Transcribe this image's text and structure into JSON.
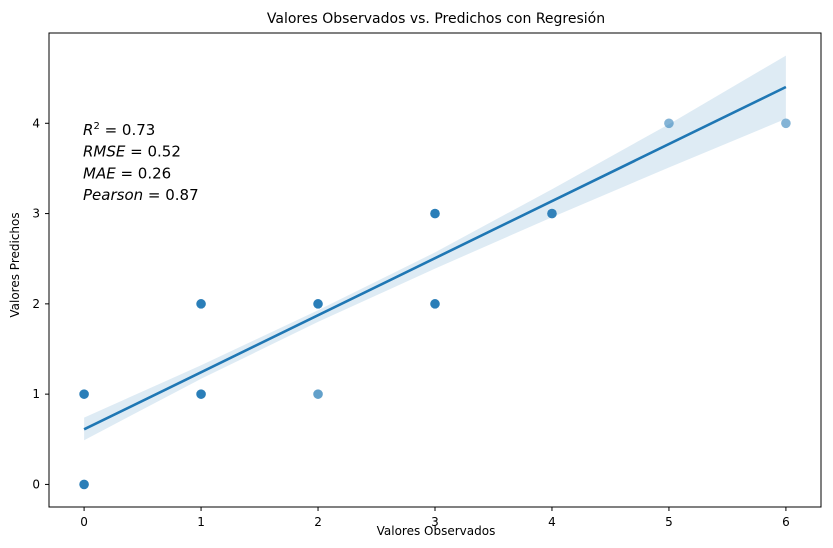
{
  "chart_data": {
    "type": "scatter",
    "title": "Valores Observados vs. Predichos con Regresión",
    "xlabel": "Valores Observados",
    "ylabel": "Valores Predichos",
    "xlim": [
      -0.3,
      6.3
    ],
    "ylim": [
      -0.25,
      5.0
    ],
    "x_ticks": [
      "0",
      "1",
      "2",
      "3",
      "4",
      "5",
      "6"
    ],
    "y_ticks": [
      "0",
      "1",
      "2",
      "3",
      "4"
    ],
    "grid": false,
    "points": [
      {
        "x": 0,
        "y": 0,
        "alpha": 0.95
      },
      {
        "x": 0,
        "y": 1,
        "alpha": 0.95
      },
      {
        "x": 1,
        "y": 1,
        "alpha": 0.95
      },
      {
        "x": 1,
        "y": 2,
        "alpha": 0.95
      },
      {
        "x": 2,
        "y": 1,
        "alpha": 0.7
      },
      {
        "x": 2,
        "y": 2,
        "alpha": 0.95
      },
      {
        "x": 3,
        "y": 2,
        "alpha": 0.95
      },
      {
        "x": 3,
        "y": 3,
        "alpha": 0.95
      },
      {
        "x": 4,
        "y": 3,
        "alpha": 0.9
      },
      {
        "x": 5,
        "y": 4,
        "alpha": 0.55
      },
      {
        "x": 6,
        "y": 4,
        "alpha": 0.55
      }
    ],
    "regression": {
      "intercept": 0.61,
      "slope": 0.632,
      "x_range": [
        0,
        6
      ]
    },
    "confidence_band": {
      "x": [
        0,
        1,
        2,
        3,
        4,
        5,
        6
      ],
      "lower": [
        0.49,
        1.17,
        1.8,
        2.39,
        2.96,
        3.51,
        4.05
      ],
      "upper": [
        0.74,
        1.32,
        1.93,
        2.57,
        3.27,
        3.99,
        4.75
      ]
    },
    "colors": {
      "points": "#1f77b4",
      "line": "#1f77b4",
      "band": "#1f77b4"
    },
    "annotation": {
      "lines": [
        {
          "name": "R",
          "sup": "2",
          "value": " = 0.73"
        },
        {
          "name": "RMSE",
          "sup": "",
          "value": " = 0.52"
        },
        {
          "name": "MAE",
          "sup": "",
          "value": " = 0.26"
        },
        {
          "name": "Pearson",
          "sup": "",
          "value": " = 0.87"
        }
      ],
      "placement": "top-left"
    }
  }
}
